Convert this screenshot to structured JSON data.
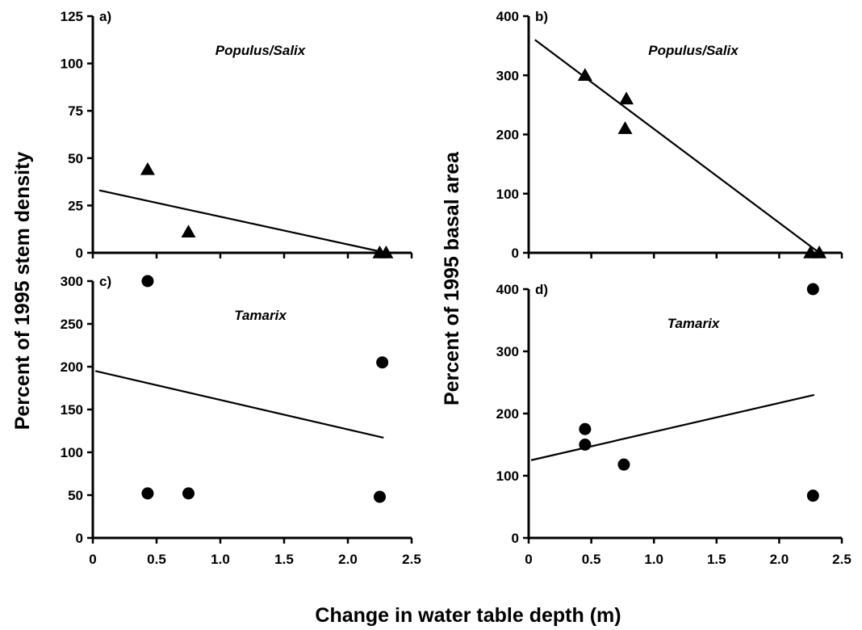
{
  "figure": {
    "ylabel_left": "Percent of 1995 stem density",
    "ylabel_right": "Percent of 1995 basal area",
    "xlabel": "Change in water table depth (m)"
  },
  "chart_data": [
    {
      "id": "a",
      "panel_label": "a)",
      "title": "Populus/Salix",
      "type": "scatter",
      "xlim": [
        0,
        2.5
      ],
      "ylim": [
        0,
        125
      ],
      "yticks": [
        "0",
        "25",
        "50",
        "75",
        "100",
        "125"
      ],
      "xticks": [],
      "marker": "triangle",
      "points": [
        {
          "x": 0.43,
          "y": 44
        },
        {
          "x": 0.75,
          "y": 11
        },
        {
          "x": 2.25,
          "y": 0
        },
        {
          "x": 2.3,
          "y": 0
        }
      ],
      "fit_lines": [
        {
          "x": [
            0.05,
            2.3
          ],
          "y": [
            33,
            0
          ]
        },
        {
          "x": [
            0,
            0.93
          ],
          "y": [
            0,
            0
          ]
        }
      ]
    },
    {
      "id": "b",
      "panel_label": "b)",
      "title": "Populus/Salix",
      "type": "scatter",
      "xlim": [
        0,
        2.5
      ],
      "ylim": [
        0,
        400
      ],
      "yticks": [
        "0",
        "100",
        "200",
        "300",
        "400"
      ],
      "xticks": [],
      "marker": "triangle",
      "points": [
        {
          "x": 0.45,
          "y": 300
        },
        {
          "x": 0.78,
          "y": 260
        },
        {
          "x": 0.77,
          "y": 210
        },
        {
          "x": 2.25,
          "y": 0
        },
        {
          "x": 2.32,
          "y": 0
        }
      ],
      "fit_lines": [
        {
          "x": [
            0.05,
            2.32
          ],
          "y": [
            360,
            0
          ]
        }
      ]
    },
    {
      "id": "c",
      "panel_label": "c)",
      "title": "Tamarix",
      "type": "scatter",
      "xlim": [
        0,
        2.5
      ],
      "ylim": [
        0,
        300
      ],
      "yticks": [
        "0",
        "50",
        "100",
        "150",
        "200",
        "250",
        "300"
      ],
      "xticks": [
        "0",
        "0.5",
        "1.0",
        "1.5",
        "2.0",
        "2.5"
      ],
      "marker": "circle",
      "points": [
        {
          "x": 0.43,
          "y": 300
        },
        {
          "x": 0.43,
          "y": 52
        },
        {
          "x": 0.75,
          "y": 52
        },
        {
          "x": 2.25,
          "y": 48
        },
        {
          "x": 2.27,
          "y": 205
        }
      ],
      "fit_lines": [
        {
          "x": [
            0.02,
            2.28
          ],
          "y": [
            195,
            117
          ]
        }
      ]
    },
    {
      "id": "d",
      "panel_label": "d)",
      "title": "Tamarix",
      "type": "scatter",
      "xlim": [
        0,
        2.5
      ],
      "ylim": [
        0,
        400
      ],
      "yticks": [
        "0",
        "100",
        "200",
        "300",
        "400"
      ],
      "xticks": [
        "0",
        "0.5",
        "1.0",
        "1.5",
        "2.0",
        "2.5"
      ],
      "marker": "circle",
      "points": [
        {
          "x": 0.45,
          "y": 175
        },
        {
          "x": 0.45,
          "y": 150
        },
        {
          "x": 0.76,
          "y": 118
        },
        {
          "x": 2.27,
          "y": 400
        },
        {
          "x": 2.27,
          "y": 68
        }
      ],
      "fit_lines": [
        {
          "x": [
            0.02,
            2.28
          ],
          "y": [
            125,
            230
          ]
        }
      ]
    }
  ]
}
